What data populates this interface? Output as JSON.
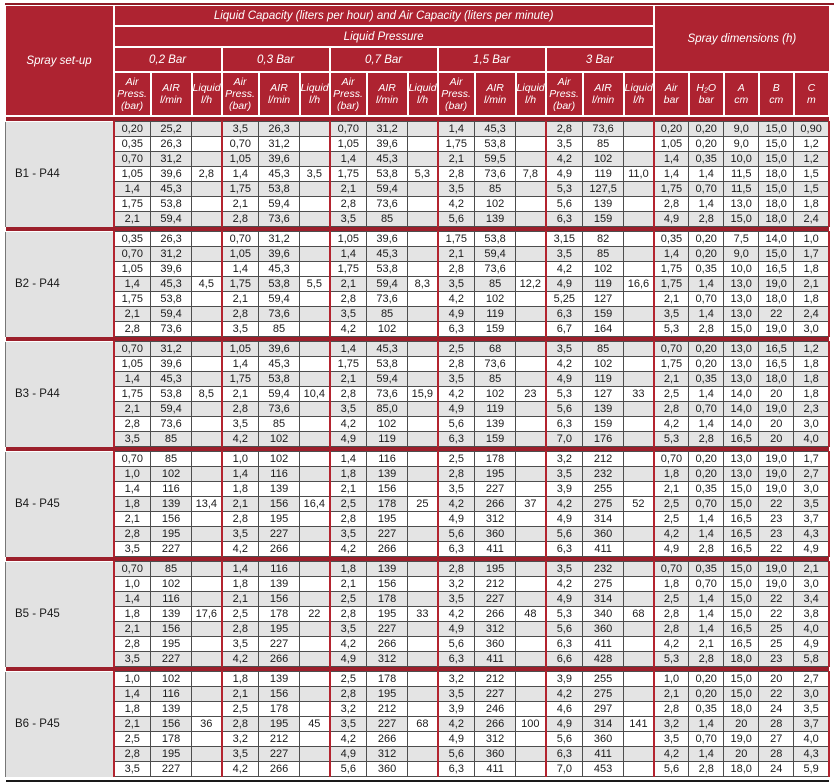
{
  "colors": {
    "header_bg": "#ae2331",
    "sep_red": "#9c1f2b",
    "line_red": "#b3242f",
    "row_gray": "#e4e4e4",
    "label_gray": "#e2e2e2",
    "border_dark": "#4d4d4d",
    "bottom_line": "#1a1a1a"
  },
  "header": {
    "spray_setup": "Spray set-up",
    "capacity_title": "Liquid Capacity (liters per hour) and Air Capacity (liters per minute)",
    "liquid_pressure": "Liquid Pressure",
    "spray_dimensions": "Spray dimensions (h)",
    "pressures": [
      "0,2 Bar",
      "0,3 Bar",
      "0,7 Bar",
      "1,5 Bar",
      "3 Bar"
    ],
    "sub": {
      "press": "Air\nPress.\n(bar)",
      "air": "AIR\nl/min",
      "liquid": "Liquid\nl/h"
    },
    "dims": [
      "Air\nbar",
      "H₂O\nbar",
      "A\ncm",
      "B\ncm",
      "C\nm"
    ]
  },
  "blocks": [
    {
      "label": "B1 - P44",
      "liquid": [
        "2,8",
        "3,5",
        "5,3",
        "7,8",
        "11,0"
      ],
      "rows": [
        [
          "0,20",
          "25,2",
          "3,5",
          "26,3",
          "0,70",
          "31,2",
          "1,4",
          "45,3",
          "2,8",
          "73,6",
          "0,20",
          "0,20",
          "9,0",
          "15,0",
          "0,90"
        ],
        [
          "0,35",
          "26,3",
          "0,70",
          "31,2",
          "1,05",
          "39,6",
          "1,75",
          "53,8",
          "3,5",
          "85",
          "1,05",
          "0,20",
          "9,0",
          "15,0",
          "1,2"
        ],
        [
          "0,70",
          "31,2",
          "1,05",
          "39,6",
          "1,4",
          "45,3",
          "2,1",
          "59,5",
          "4,2",
          "102",
          "1,4",
          "0,35",
          "10,0",
          "15,0",
          "1,2"
        ],
        [
          "1,05",
          "39,6",
          "1,4",
          "45,3",
          "1,75",
          "53,8",
          "2,8",
          "73,6",
          "4,9",
          "119",
          "1,4",
          "1,4",
          "11,5",
          "18,0",
          "1,5"
        ],
        [
          "1,4",
          "45,3",
          "1,75",
          "53,8",
          "2,1",
          "59,4",
          "3,5",
          "85",
          "5,3",
          "127,5",
          "1,75",
          "0,70",
          "11,5",
          "15,0",
          "1,5"
        ],
        [
          "1,75",
          "53,8",
          "2,1",
          "59,4",
          "2,8",
          "73,6",
          "4,2",
          "102",
          "5,6",
          "139",
          "2,8",
          "1,4",
          "13,0",
          "18,0",
          "1,8"
        ],
        [
          "2,1",
          "59,4",
          "2,8",
          "73,6",
          "3,5",
          "85",
          "5,6",
          "139",
          "6,3",
          "159",
          "4,9",
          "2,8",
          "15,0",
          "18,0",
          "2,4"
        ]
      ]
    },
    {
      "label": "B2 - P44",
      "liquid": [
        "4,5",
        "5,5",
        "8,3",
        "12,2",
        "16,6"
      ],
      "rows": [
        [
          "0,35",
          "26,3",
          "0,70",
          "31,2",
          "1,05",
          "39,6",
          "1,75",
          "53,8",
          "3,15",
          "82",
          "0,35",
          "0,20",
          "7,5",
          "14,0",
          "1,0"
        ],
        [
          "0,70",
          "31,2",
          "1,05",
          "39,6",
          "1,4",
          "45,3",
          "2,1",
          "59,4",
          "3,5",
          "85",
          "1,4",
          "0,20",
          "9,0",
          "15,0",
          "1,7"
        ],
        [
          "1,05",
          "39,6",
          "1,4",
          "45,3",
          "1,75",
          "53,8",
          "2,8",
          "73,6",
          "4,2",
          "102",
          "1,75",
          "0,35",
          "10,0",
          "16,5",
          "1,8"
        ],
        [
          "1,4",
          "45,3",
          "1,75",
          "53,8",
          "2,1",
          "59,4",
          "3,5",
          "85",
          "4,9",
          "119",
          "1,75",
          "1,4",
          "13,0",
          "19,0",
          "2,1"
        ],
        [
          "1,75",
          "53,8",
          "2,1",
          "59,4",
          "2,8",
          "73,6",
          "4,2",
          "102",
          "5,25",
          "127",
          "2,1",
          "0,70",
          "13,0",
          "18,0",
          "1,8"
        ],
        [
          "2,1",
          "59,4",
          "2,8",
          "73,6",
          "3,5",
          "85",
          "4,9",
          "119",
          "6,3",
          "159",
          "3,5",
          "1,4",
          "13,0",
          "22",
          "2,4"
        ],
        [
          "2,8",
          "73,6",
          "3,5",
          "85",
          "4,2",
          "102",
          "6,3",
          "159",
          "6,7",
          "164",
          "5,3",
          "2,8",
          "15,0",
          "19,0",
          "3,0"
        ]
      ]
    },
    {
      "label": "B3 - P44",
      "liquid": [
        "8,5",
        "10,4",
        "15,9",
        "23",
        "33"
      ],
      "rows": [
        [
          "0,70",
          "31,2",
          "1,05",
          "39,6",
          "1,4",
          "45,3",
          "2,5",
          "68",
          "3,5",
          "85",
          "0,70",
          "0,20",
          "13,0",
          "16,5",
          "1,2"
        ],
        [
          "1,05",
          "39,6",
          "1,4",
          "45,3",
          "1,75",
          "53,8",
          "2,8",
          "73,6",
          "4,2",
          "102",
          "1,75",
          "0,20",
          "13,0",
          "16,5",
          "1,8"
        ],
        [
          "1,4",
          "45,3",
          "1,75",
          "53,8",
          "2,1",
          "59,4",
          "3,5",
          "85",
          "4,9",
          "119",
          "2,1",
          "0,35",
          "13,0",
          "18,0",
          "1,8"
        ],
        [
          "1,75",
          "53,8",
          "2,1",
          "59,4",
          "2,8",
          "73,6",
          "4,2",
          "102",
          "5,3",
          "127",
          "2,5",
          "1,4",
          "14,0",
          "20",
          "1,8"
        ],
        [
          "2,1",
          "59,4",
          "2,8",
          "73,6",
          "3,5",
          "85,0",
          "4,9",
          "119",
          "5,6",
          "139",
          "2,8",
          "0,70",
          "14,0",
          "19,0",
          "2,3"
        ],
        [
          "2,8",
          "73,6",
          "3,5",
          "85",
          "4,2",
          "102",
          "5,6",
          "139",
          "6,3",
          "159",
          "4,2",
          "1,4",
          "14,0",
          "20",
          "3,0"
        ],
        [
          "3,5",
          "85",
          "4,2",
          "102",
          "4,9",
          "119",
          "6,3",
          "159",
          "7,0",
          "176",
          "5,3",
          "2,8",
          "16,5",
          "20",
          "4,0"
        ]
      ]
    },
    {
      "label": "B4 - P45",
      "liquid": [
        "13,4",
        "16,4",
        "25",
        "37",
        "52"
      ],
      "rows": [
        [
          "0,70",
          "85",
          "1,0",
          "102",
          "1,4",
          "116",
          "2,5",
          "178",
          "3,2",
          "212",
          "0,70",
          "0,20",
          "13,0",
          "19,0",
          "1,7"
        ],
        [
          "1,0",
          "102",
          "1,4",
          "116",
          "1,8",
          "139",
          "2,8",
          "195",
          "3,5",
          "232",
          "1,8",
          "0,20",
          "13,0",
          "19,0",
          "2,7"
        ],
        [
          "1,4",
          "116",
          "1,8",
          "139",
          "2,1",
          "156",
          "3,5",
          "227",
          "3,9",
          "255",
          "2,1",
          "0,35",
          "15,0",
          "19,0",
          "3,0"
        ],
        [
          "1,8",
          "139",
          "2,1",
          "156",
          "2,5",
          "178",
          "4,2",
          "266",
          "4,2",
          "275",
          "2,5",
          "0,70",
          "15,0",
          "22",
          "3,5"
        ],
        [
          "2,1",
          "156",
          "2,8",
          "195",
          "2,8",
          "195",
          "4,9",
          "312",
          "4,9",
          "314",
          "2,5",
          "1,4",
          "16,5",
          "23",
          "3,7"
        ],
        [
          "2,8",
          "195",
          "3,5",
          "227",
          "3,5",
          "227",
          "5,6",
          "360",
          "5,6",
          "360",
          "4,2",
          "1,4",
          "16,5",
          "23",
          "4,3"
        ],
        [
          "3,5",
          "227",
          "4,2",
          "266",
          "4,2",
          "266",
          "6,3",
          "411",
          "6,3",
          "411",
          "4,9",
          "2,8",
          "16,5",
          "22",
          "4,9"
        ]
      ]
    },
    {
      "label": "B5 - P45",
      "liquid": [
        "17,6",
        "22",
        "33",
        "48",
        "68"
      ],
      "rows": [
        [
          "0,70",
          "85",
          "1,4",
          "116",
          "1,8",
          "139",
          "2,8",
          "195",
          "3,5",
          "232",
          "0,70",
          "0,35",
          "15,0",
          "19,0",
          "2,1"
        ],
        [
          "1,0",
          "102",
          "1,8",
          "139",
          "2,1",
          "156",
          "3,2",
          "212",
          "4,2",
          "275",
          "1,8",
          "0,70",
          "15,0",
          "19,0",
          "3,0"
        ],
        [
          "1,4",
          "116",
          "2,1",
          "156",
          "2,5",
          "178",
          "3,5",
          "227",
          "4,9",
          "314",
          "2,5",
          "1,4",
          "15,0",
          "22",
          "3,4"
        ],
        [
          "1,8",
          "139",
          "2,5",
          "178",
          "2,8",
          "195",
          "4,2",
          "266",
          "5,3",
          "340",
          "2,8",
          "1,4",
          "15,0",
          "22",
          "3,8"
        ],
        [
          "2,1",
          "156",
          "2,8",
          "195",
          "3,5",
          "227",
          "4,9",
          "312",
          "5,6",
          "360",
          "2,8",
          "1,4",
          "16,5",
          "25",
          "4,0"
        ],
        [
          "2,8",
          "195",
          "3,5",
          "227",
          "4,2",
          "266",
          "5,6",
          "360",
          "6,3",
          "411",
          "4,2",
          "2,1",
          "16,5",
          "25",
          "4,9"
        ],
        [
          "3,5",
          "227",
          "4,2",
          "266",
          "4,9",
          "312",
          "6,3",
          "411",
          "6,6",
          "428",
          "5,3",
          "2,8",
          "18,0",
          "23",
          "5,8"
        ]
      ]
    },
    {
      "label": "B6 - P45",
      "liquid": [
        "36",
        "45",
        "68",
        "100",
        "141"
      ],
      "rows": [
        [
          "1,0",
          "102",
          "1,8",
          "139",
          "2,5",
          "178",
          "3,2",
          "212",
          "3,9",
          "255",
          "1,0",
          "0,20",
          "15,0",
          "20",
          "2,7"
        ],
        [
          "1,4",
          "116",
          "2,1",
          "156",
          "2,8",
          "195",
          "3,5",
          "227",
          "4,2",
          "275",
          "2,1",
          "0,20",
          "15,0",
          "22",
          "3,0"
        ],
        [
          "1,8",
          "139",
          "2,5",
          "178",
          "3,2",
          "212",
          "3,9",
          "246",
          "4,6",
          "297",
          "2,8",
          "0,35",
          "18,0",
          "24",
          "3,5"
        ],
        [
          "2,1",
          "156",
          "2,8",
          "195",
          "3,5",
          "227",
          "4,2",
          "266",
          "4,9",
          "314",
          "3,2",
          "1,4",
          "20",
          "28",
          "3,7"
        ],
        [
          "2,5",
          "178",
          "3,2",
          "212",
          "4,2",
          "266",
          "4,9",
          "312",
          "5,6",
          "360",
          "3,5",
          "0,70",
          "19,0",
          "27",
          "4,0"
        ],
        [
          "2,8",
          "195",
          "3,5",
          "227",
          "4,9",
          "312",
          "5,6",
          "360",
          "6,3",
          "411",
          "4,2",
          "1,4",
          "20",
          "28",
          "4,3"
        ],
        [
          "3,5",
          "227",
          "4,2",
          "266",
          "5,6",
          "360",
          "6,3",
          "411",
          "7,0",
          "453",
          "5,6",
          "2,8",
          "18,0",
          "24",
          "5,9"
        ]
      ]
    }
  ]
}
